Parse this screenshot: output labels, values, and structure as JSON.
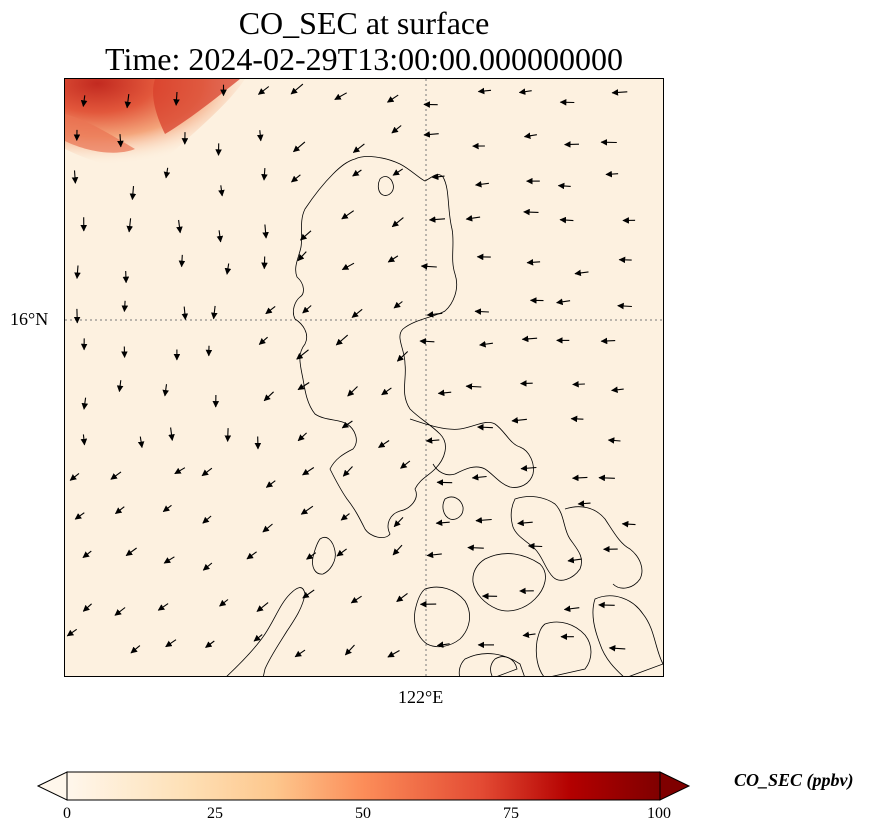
{
  "title": {
    "line1": "CO_SEC at surface",
    "line2": "Time: 2024-02-29T13:00:00.000000000"
  },
  "map": {
    "lat_tick_label": "16°N",
    "lon_tick_label": "122°E",
    "background_color": "#fdf1e0",
    "plume_colors": [
      "#f7c9a2",
      "#f08a60",
      "#dd4a33",
      "#c22a20"
    ],
    "coastline_color": "#000000",
    "gridline_style": "dotted",
    "wind_vectors": "black-arrows"
  },
  "colorbar": {
    "label": "CO_SEC (ppbv)",
    "colormap": "OrRd",
    "min": 0,
    "max": 100,
    "ticks": [
      "0",
      "25",
      "50",
      "75",
      "100"
    ],
    "extend": "both"
  }
}
